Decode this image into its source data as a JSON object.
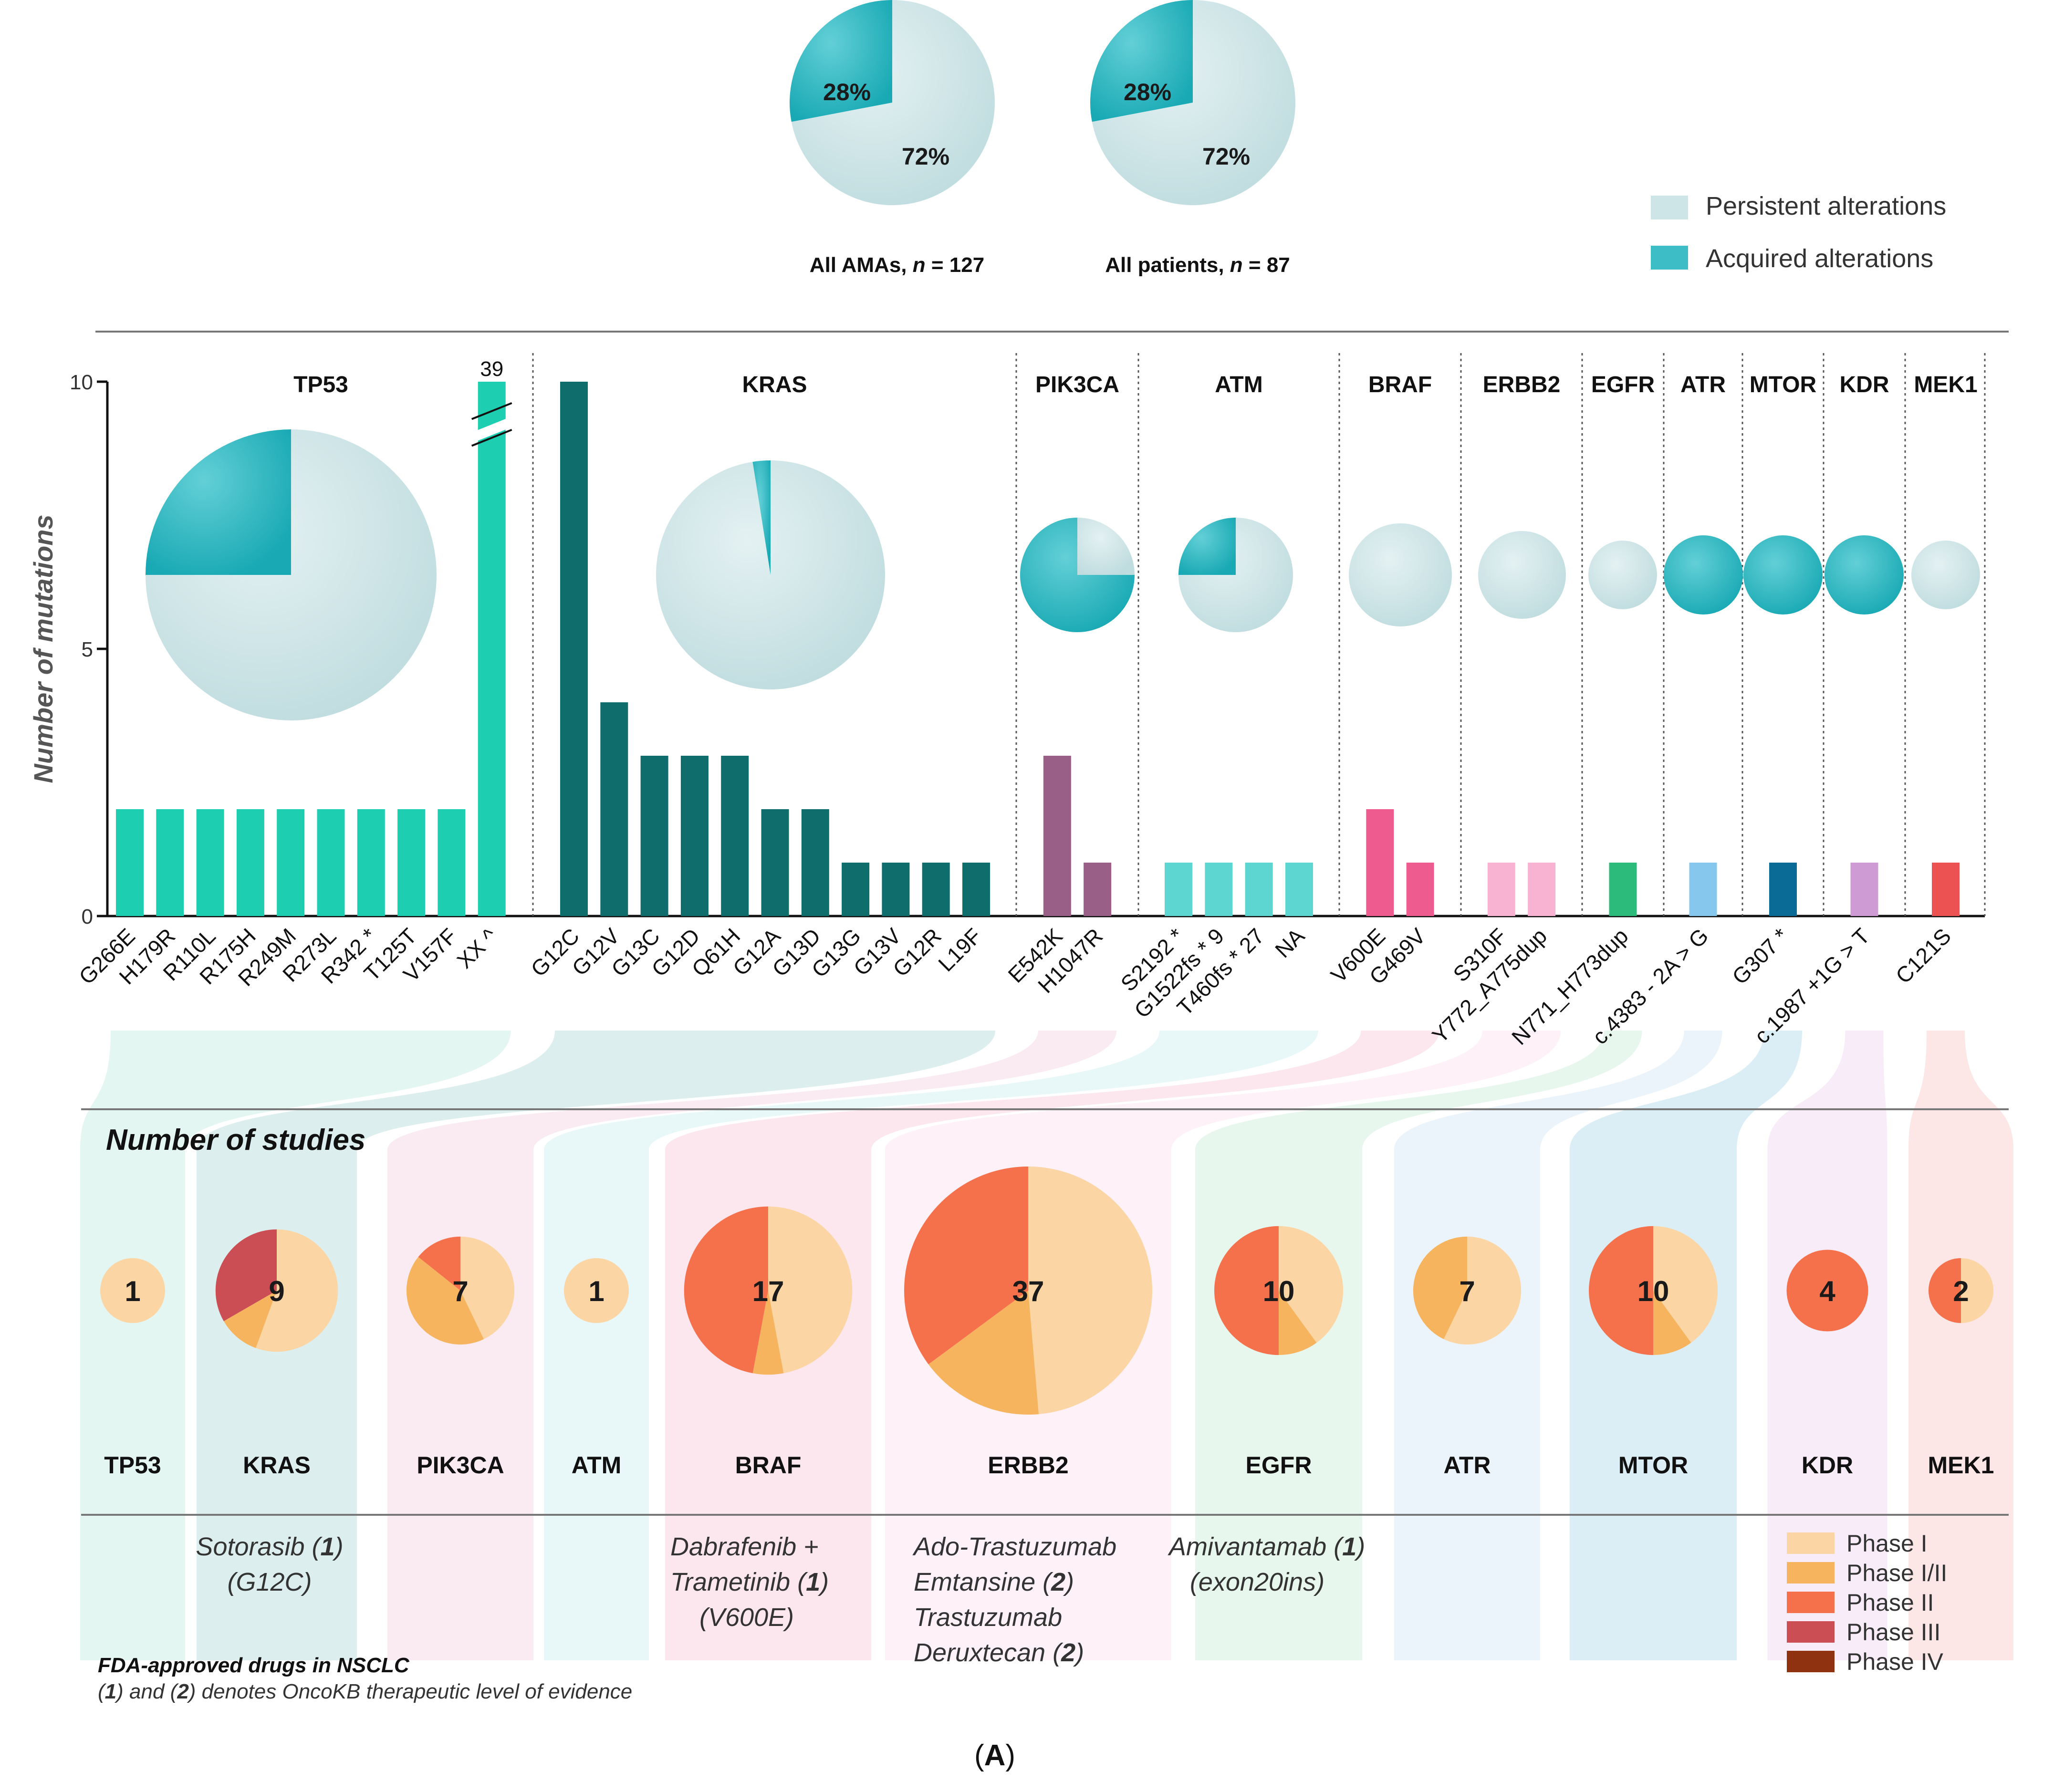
{
  "chart_data": {
    "type": "composite",
    "overview": {
      "legend": {
        "persistent": "Persistent alterations",
        "acquired": "Acquired alterations"
      },
      "colors": {
        "persistent": "#cde5e7",
        "acquired": "#3dbdc6"
      },
      "pies": [
        {
          "caption": "All AMAs,",
          "n_label": "n",
          "n_value": "= 127",
          "acquired_pct": 28,
          "persistent_pct": 72,
          "acquired_text": "28%",
          "persistent_text": "72%"
        },
        {
          "caption": "All patients,",
          "n_label": "n",
          "n_value": "= 87",
          "acquired_pct": 28,
          "persistent_pct": 72,
          "acquired_text": "28%",
          "persistent_text": "72%"
        }
      ]
    },
    "bar_chart": {
      "type": "bar",
      "ylabel": "Number of mutations",
      "ylim": [
        0,
        10
      ],
      "yticks": [
        "0",
        "5",
        "10"
      ],
      "break_value_label": "39",
      "genes": [
        {
          "gene": "TP53",
          "color": "#1dcfb0",
          "acquired_fraction": 0.25,
          "pie_scale": 1.0,
          "mutations": [
            "G266E",
            "H179R",
            "R110L",
            "R175H",
            "R249M",
            "R273L",
            "R342 *",
            "T125T",
            "V157F",
            "XX ^"
          ],
          "values": [
            2,
            2,
            2,
            2,
            2,
            2,
            2,
            2,
            2,
            39
          ]
        },
        {
          "gene": "KRAS",
          "color": "#0f6e6c",
          "acquired_fraction": 0.025,
          "pie_scale": 0.82,
          "mutations": [
            "G12C",
            "G12V",
            "G13C",
            "G12D",
            "Q61H",
            "G12A",
            "G13D",
            "G13G",
            "G13V",
            "G12R",
            "L19F"
          ],
          "values": [
            10,
            4,
            3,
            3,
            3,
            2,
            2,
            1,
            1,
            1,
            1
          ]
        },
        {
          "gene": "PIK3CA",
          "color": "#9a5f86",
          "acquired_fraction": 0.75,
          "pie_scale": 0.38,
          "mutations": [
            "E542K",
            "H1047R"
          ],
          "values": [
            3,
            1
          ]
        },
        {
          "gene": "ATM",
          "color": "#5dd6d2",
          "acquired_fraction": 0.25,
          "pie_scale": 0.38,
          "mutations": [
            "S2192 *",
            "G1522fs * 9",
            "T460fs * 27",
            "NA"
          ],
          "values": [
            1,
            1,
            1,
            1
          ]
        },
        {
          "gene": "BRAF",
          "color": "#ee5b8e",
          "acquired_fraction": 0,
          "pie_scale": 0.34,
          "mutations": [
            "V600E",
            "G469V"
          ],
          "values": [
            2,
            1
          ]
        },
        {
          "gene": "ERBB2",
          "color": "#f9b3d2",
          "acquired_fraction": 0,
          "pie_scale": 0.3,
          "mutations": [
            "S310F",
            "Y772_A775dup"
          ],
          "values": [
            1,
            1
          ]
        },
        {
          "gene": "EGFR",
          "color": "#2dbb7c",
          "acquired_fraction": 0,
          "pie_scale": 0.23,
          "mutations": [
            "N771_H773dup"
          ],
          "values": [
            1
          ]
        },
        {
          "gene": "ATR",
          "color": "#86c7ee",
          "acquired_fraction": 1,
          "pie_scale": 0.27,
          "mutations": [
            "c.4383 - 2A > G"
          ],
          "values": [
            1
          ]
        },
        {
          "gene": "MTOR",
          "color": "#0b6b97",
          "acquired_fraction": 1,
          "pie_scale": 0.27,
          "mutations": [
            "G307 *"
          ],
          "values": [
            1
          ]
        },
        {
          "gene": "KDR",
          "color": "#cf9bd5",
          "acquired_fraction": 1,
          "pie_scale": 0.27,
          "mutations": [
            "c.1987 +1G > T"
          ],
          "values": [
            1
          ]
        },
        {
          "gene": "MEK1",
          "color": "#ec5252",
          "acquired_fraction": 0,
          "pie_scale": 0.23,
          "mutations": [
            "C121S"
          ],
          "values": [
            1
          ]
        }
      ]
    },
    "studies": {
      "title": "Number of studies",
      "phase_labels": [
        "Phase I",
        "Phase I/II",
        "Phase II",
        "Phase III",
        "Phase IV"
      ],
      "phase_colors": [
        "#fbd5a3",
        "#f6b45f",
        "#f4714b",
        "#cc4e55",
        "#8f3210"
      ],
      "items": [
        {
          "gene": "TP53",
          "total": "1",
          "phases": [
            1,
            0,
            0,
            0,
            0
          ]
        },
        {
          "gene": "KRAS",
          "total": "9",
          "phases": [
            5,
            1,
            0,
            3,
            0
          ]
        },
        {
          "gene": "PIK3CA",
          "total": "7",
          "phases": [
            3,
            3,
            1,
            0,
            0
          ]
        },
        {
          "gene": "ATM",
          "total": "1",
          "phases": [
            1,
            0,
            0,
            0,
            0
          ]
        },
        {
          "gene": "BRAF",
          "total": "17",
          "phases": [
            8,
            1,
            8,
            0,
            0
          ]
        },
        {
          "gene": "ERBB2",
          "total": "37",
          "phases": [
            18,
            6,
            13,
            0,
            0
          ]
        },
        {
          "gene": "EGFR",
          "total": "10",
          "phases": [
            4,
            1,
            5,
            0,
            0
          ]
        },
        {
          "gene": "ATR",
          "total": "7",
          "phases": [
            4,
            3,
            0,
            0,
            0
          ]
        },
        {
          "gene": "MTOR",
          "total": "10",
          "phases": [
            4,
            1,
            5,
            0,
            0
          ]
        },
        {
          "gene": "KDR",
          "total": "4",
          "phases": [
            0,
            0,
            4,
            0,
            0
          ]
        },
        {
          "gene": "MEK1",
          "total": "2",
          "phases": [
            1,
            0,
            1,
            0,
            0
          ]
        }
      ]
    },
    "drugs": {
      "entries": [
        {
          "gene": "KRAS",
          "lines": [
            [
              "Sotorasib (",
              "1",
              ")"
            ],
            [
              "(G12C)"
            ]
          ]
        },
        {
          "gene": "BRAF",
          "lines": [
            [
              "Dabrafenib +"
            ],
            [
              "Trametinib (",
              "1",
              ")"
            ],
            [
              "(V600E)"
            ]
          ]
        },
        {
          "gene": "ERBB2",
          "lines": [
            [
              "Ado-Trastuzumab"
            ],
            [
              "Emtansine (",
              "2",
              ")"
            ],
            [
              "Trastuzumab"
            ],
            [
              "Deruxtecan (",
              "2",
              ")"
            ]
          ]
        },
        {
          "gene": "EGFR",
          "lines": [
            [
              "Amivantamab (",
              "1",
              ")"
            ],
            [
              "(exon20ins)"
            ]
          ]
        }
      ],
      "footnote_title": "FDA-approved drugs in NSCLC",
      "footnote_parts": [
        "(",
        "1",
        ") and (",
        "2",
        ") denotes OncoKB therapeutic level of evidence"
      ]
    },
    "panel_label": {
      "open": "(",
      "letter": "A",
      "close": ")"
    }
  }
}
